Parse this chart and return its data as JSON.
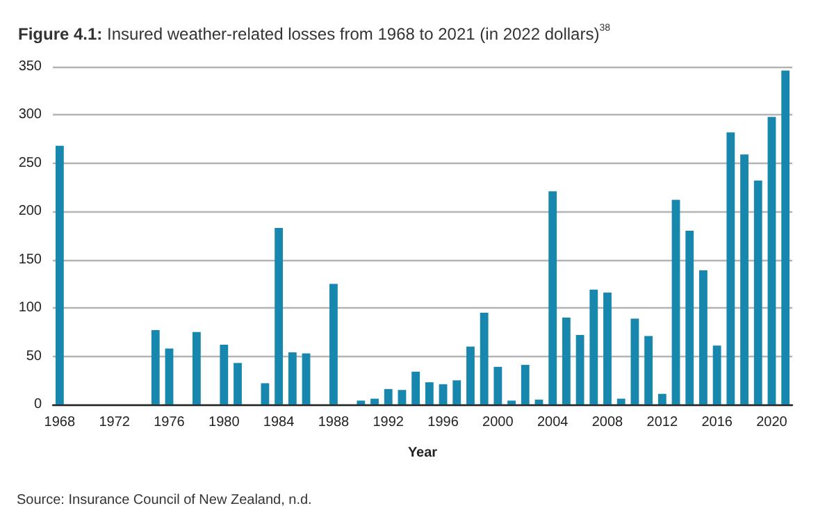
{
  "chart_data": {
    "type": "bar",
    "title": "Figure 4.1: Insured weather-related losses from 1968 to 2021 (in 2022 dollars)$^{38}$",
    "xlabel": "Year",
    "categories": [
      "1968",
      null,
      null,
      null,
      "1972",
      null,
      null,
      null,
      "1976",
      null,
      null,
      null,
      "1980",
      null,
      null,
      null,
      "1984",
      null,
      null,
      null,
      "1988",
      null,
      null,
      null,
      "1992",
      null,
      null,
      null,
      "1996",
      null,
      null,
      null,
      "2000",
      null,
      null,
      null,
      "2004",
      null,
      null,
      null,
      "2008",
      null,
      null,
      null,
      "2012",
      null,
      null,
      null,
      "2016",
      null,
      null,
      null,
      "2020",
      null
    ],
    "values": [
      268,
      null,
      null,
      null,
      null,
      null,
      null,
      77,
      58,
      null,
      75,
      null,
      62,
      43,
      null,
      22,
      183,
      54,
      53,
      null,
      125,
      null,
      4,
      6,
      16,
      15,
      34,
      23,
      21,
      25,
      60,
      95,
      39,
      4,
      41,
      5,
      221,
      90,
      72,
      119,
      116,
      6,
      89,
      71,
      11,
      212,
      180,
      139,
      61,
      282,
      259,
      232,
      298,
      346
    ],
    "color": "#1787ae",
    "ylim": [
      0,
      350
    ],
    "yticks": [
      0,
      50,
      100,
      150,
      200,
      250,
      300,
      350
    ],
    "grid": "y",
    "annotations": [
      "Source: Insurance Council of New Zealand, n.d."
    ]
  }
}
